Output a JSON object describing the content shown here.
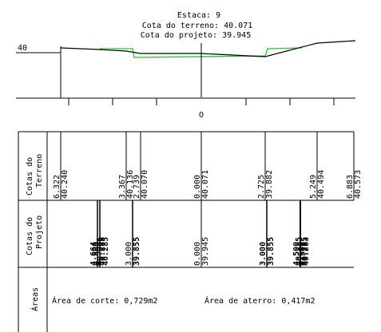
{
  "header": {
    "estaca": "Estaca: 9",
    "cota_terreno": "Cota do terreno: 40.071",
    "cota_projeto": "Cota do projeto: 39.945"
  },
  "profile": {
    "elevation_label": "40",
    "axis_label": "O"
  },
  "rows": {
    "terreno": {
      "label_line1": "Cotas do",
      "label_line2": "Terreno"
    },
    "projeto": {
      "label_line1": "Cotas do",
      "label_line2": "Projeto"
    },
    "areas": {
      "label": "Áreas"
    }
  },
  "terreno_points": [
    {
      "offset": "6.322",
      "elev": "40.240"
    },
    {
      "offset": "3.367",
      "elev": "40.136"
    },
    {
      "offset": "2.739",
      "elev": "40.070"
    },
    {
      "offset": "0.000",
      "elev": "40.071"
    },
    {
      "offset": "2.725",
      "elev": "39.882"
    },
    {
      "offset": "5.249",
      "elev": "40.494"
    },
    {
      "offset": "6.883",
      "elev": "40.573"
    }
  ],
  "projeto_points": [
    {
      "offset": "4.664",
      "elev": "40.285"
    },
    {
      "offset": "4.500",
      "elev": "40.285"
    },
    {
      "offset": "4.500",
      "elev": "40.285"
    },
    {
      "offset": "3.000",
      "elev": "39.855"
    },
    {
      "offset": "0.000",
      "elev": "39.945"
    },
    {
      "offset": "3.000",
      "elev": "39.855"
    },
    {
      "offset": "4.500",
      "elev": "40.285"
    },
    {
      "offset": "4.500",
      "elev": "40.285"
    },
    {
      "offset": "4.500",
      "elev": "40.283"
    }
  ],
  "areas": {
    "corte": "Área de corte: 0,729m2",
    "aterro": "Área de aterro: 0,417m2"
  },
  "colors": {
    "terrain_line": "#000000",
    "project_line": "#22cc22",
    "grid": "#000000"
  }
}
